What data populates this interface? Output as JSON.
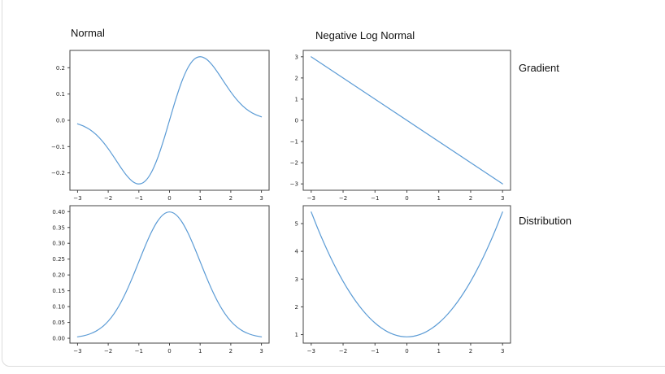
{
  "colors": {
    "line": "#5b9bd5",
    "axis": "#444444",
    "tick_text": "#262626",
    "card_border": "#dcdcdc",
    "background": "#ffffff"
  },
  "chart_data": [
    {
      "id": "normal-gradient",
      "type": "line",
      "title": "Normal",
      "x": [
        -3,
        -2.8,
        -2.6,
        -2.4,
        -2.2,
        -2,
        -1.8,
        -1.6,
        -1.4,
        -1.2,
        -1,
        -0.8,
        -0.6,
        -0.4,
        -0.2,
        0,
        0.2,
        0.4,
        0.6,
        0.8,
        1,
        1.2,
        1.4,
        1.6,
        1.8,
        2,
        2.2,
        2.4,
        2.6,
        2.8,
        3
      ],
      "y": [
        -0.0133,
        -0.0222,
        -0.0353,
        -0.0537,
        -0.078,
        -0.108,
        -0.1421,
        -0.1775,
        -0.2096,
        -0.233,
        -0.242,
        -0.2318,
        -0.1999,
        -0.1473,
        -0.0782,
        0,
        0.0782,
        0.1473,
        0.1999,
        0.2318,
        0.242,
        0.233,
        0.2096,
        0.1775,
        0.1421,
        0.108,
        0.078,
        0.0537,
        0.0353,
        0.0222,
        0.0133
      ],
      "xlim": [
        -3.25,
        3.25
      ],
      "ylim": [
        -0.266,
        0.266
      ],
      "x_tick_values": [
        -3,
        -2,
        -1,
        0,
        1,
        2,
        3
      ],
      "x_tick_labels": [
        "−3",
        "−2",
        "−1",
        "0",
        "1",
        "2",
        "3"
      ],
      "y_tick_values": [
        -0.2,
        -0.1,
        0,
        0.1,
        0.2
      ],
      "y_tick_labels": [
        "−0.2",
        "−0.1",
        "0.0",
        "0.1",
        "0.2"
      ],
      "grid": false,
      "legend": null
    },
    {
      "id": "neg-log-normal-gradient",
      "type": "line",
      "title": "Negative Log Normal",
      "row_label": "Gradient",
      "x": [
        -3,
        3
      ],
      "y": [
        3,
        -3
      ],
      "xlim": [
        -3.25,
        3.25
      ],
      "ylim": [
        -3.3,
        3.3
      ],
      "x_tick_values": [
        -3,
        -2,
        -1,
        0,
        1,
        2,
        3
      ],
      "x_tick_labels": [
        "−3",
        "−2",
        "−1",
        "0",
        "1",
        "2",
        "3"
      ],
      "y_tick_values": [
        -3,
        -2,
        -1,
        0,
        1,
        2,
        3
      ],
      "y_tick_labels": [
        "−3",
        "−2",
        "−1",
        "0",
        "1",
        "2",
        "3"
      ],
      "grid": false,
      "legend": null
    },
    {
      "id": "normal-distribution",
      "type": "line",
      "x": [
        -3,
        -2.8,
        -2.6,
        -2.4,
        -2.2,
        -2,
        -1.8,
        -1.6,
        -1.4,
        -1.2,
        -1,
        -0.8,
        -0.6,
        -0.4,
        -0.2,
        0,
        0.2,
        0.4,
        0.6,
        0.8,
        1,
        1.2,
        1.4,
        1.6,
        1.8,
        2,
        2.2,
        2.4,
        2.6,
        2.8,
        3
      ],
      "y": [
        0.0044,
        0.0079,
        0.0136,
        0.0224,
        0.0355,
        0.054,
        0.079,
        0.1109,
        0.1497,
        0.1942,
        0.242,
        0.2897,
        0.3332,
        0.3683,
        0.391,
        0.3989,
        0.391,
        0.3683,
        0.3332,
        0.2897,
        0.242,
        0.1942,
        0.1497,
        0.1109,
        0.079,
        0.054,
        0.0355,
        0.0224,
        0.0136,
        0.0079,
        0.0044
      ],
      "xlim": [
        -3.25,
        3.25
      ],
      "ylim": [
        -0.0153,
        0.4187
      ],
      "x_tick_values": [
        -3,
        -2,
        -1,
        0,
        1,
        2,
        3
      ],
      "x_tick_labels": [
        "−3",
        "−2",
        "−1",
        "0",
        "1",
        "2",
        "3"
      ],
      "y_tick_values": [
        0,
        0.05,
        0.1,
        0.15,
        0.2,
        0.25,
        0.3,
        0.35,
        0.4
      ],
      "y_tick_labels": [
        "0.00",
        "0.05",
        "0.10",
        "0.15",
        "0.20",
        "0.25",
        "0.30",
        "0.35",
        "0.40"
      ],
      "grid": false,
      "legend": null
    },
    {
      "id": "neg-log-normal-distribution",
      "type": "line",
      "row_label": "Distribution",
      "x": [
        -3,
        -2.8,
        -2.6,
        -2.4,
        -2.2,
        -2,
        -1.8,
        -1.6,
        -1.4,
        -1.2,
        -1,
        -0.8,
        -0.6,
        -0.4,
        -0.2,
        0,
        0.2,
        0.4,
        0.6,
        0.8,
        1,
        1.2,
        1.4,
        1.6,
        1.8,
        2,
        2.2,
        2.4,
        2.6,
        2.8,
        3
      ],
      "y": [
        5.4189,
        4.8389,
        4.2989,
        3.7989,
        3.3389,
        2.9189,
        2.5389,
        2.1989,
        1.8989,
        1.6389,
        1.4189,
        1.2389,
        1.0989,
        0.9989,
        0.9389,
        0.9189,
        0.9389,
        0.9989,
        1.0989,
        1.2389,
        1.4189,
        1.6389,
        1.8989,
        2.1989,
        2.5389,
        2.9189,
        3.3389,
        3.7989,
        4.2989,
        4.8389,
        5.4189
      ],
      "xlim": [
        -3.25,
        3.25
      ],
      "ylim": [
        0.694,
        5.644
      ],
      "x_tick_values": [
        -3,
        -2,
        -1,
        0,
        1,
        2,
        3
      ],
      "x_tick_labels": [
        "−3",
        "−2",
        "−1",
        "0",
        "1",
        "2",
        "3"
      ],
      "y_tick_values": [
        1,
        2,
        3,
        4,
        5
      ],
      "y_tick_labels": [
        "1",
        "2",
        "3",
        "4",
        "5"
      ],
      "grid": false,
      "legend": null
    }
  ]
}
